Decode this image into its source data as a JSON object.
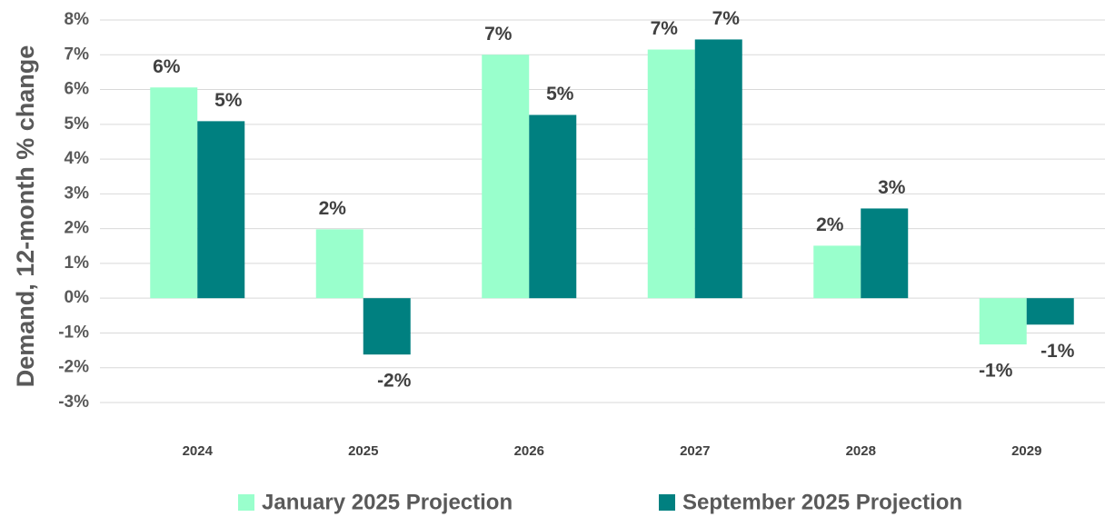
{
  "chart_data": {
    "type": "bar",
    "y_label": "Demand, 12-month % change",
    "categories": [
      "2024",
      "2025",
      "2026",
      "2027",
      "2028",
      "2029"
    ],
    "series": [
      {
        "name": "January 2025 Projection",
        "color": "#99ffcc",
        "values": [
          6.06,
          1.98,
          7.0,
          7.15,
          1.51,
          -1.33
        ],
        "value_labels": [
          "6%",
          "2%",
          "7%",
          "7%",
          "2%",
          "-1%"
        ]
      },
      {
        "name": "September 2025 Projection",
        "color": "#008080",
        "values": [
          5.09,
          -1.62,
          5.27,
          7.44,
          2.58,
          -0.76
        ],
        "value_labels": [
          "5%",
          "-2%",
          "5%",
          "7%",
          "3%",
          "-1%"
        ]
      }
    ],
    "ylim": [
      -3,
      8
    ],
    "yticks": [
      {
        "value": -3,
        "label": "-3%"
      },
      {
        "value": -2,
        "label": "-2%"
      },
      {
        "value": -1,
        "label": "-1%"
      },
      {
        "value": 0,
        "label": "0%"
      },
      {
        "value": 1,
        "label": "1%"
      },
      {
        "value": 2,
        "label": "2%"
      },
      {
        "value": 3,
        "label": "3%"
      },
      {
        "value": 4,
        "label": "4%"
      },
      {
        "value": 5,
        "label": "5%"
      },
      {
        "value": 6,
        "label": "6%"
      },
      {
        "value": 7,
        "label": "7%"
      },
      {
        "value": 8,
        "label": "8%"
      }
    ],
    "grid": true,
    "legend": "bottom"
  }
}
